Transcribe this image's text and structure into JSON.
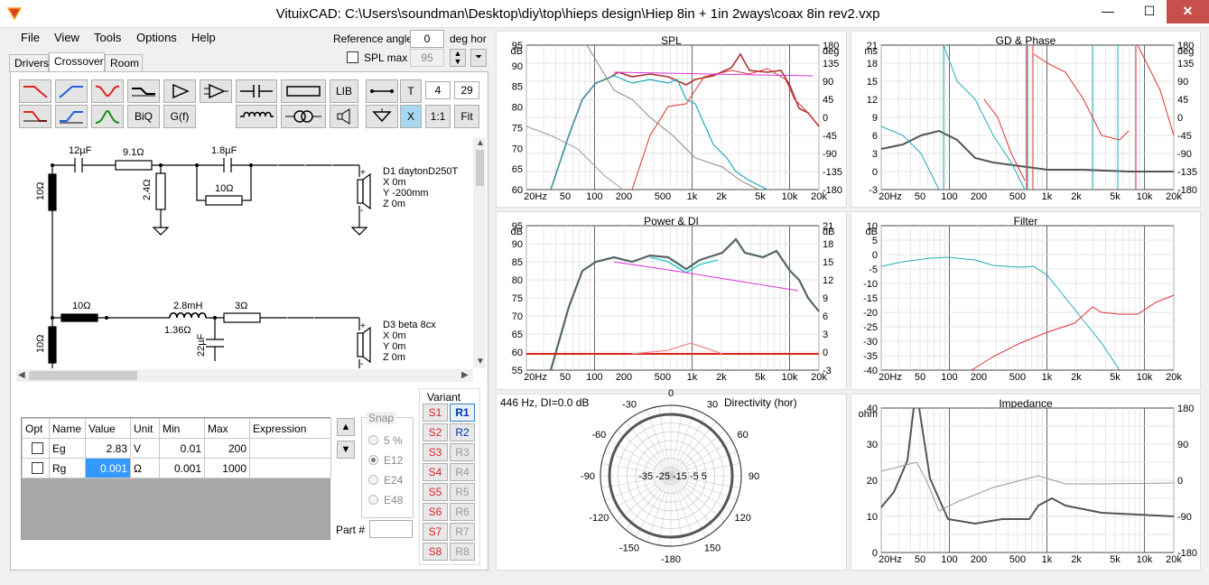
{
  "window": {
    "title": "VituixCAD: C:\\Users\\soundman\\Desktop\\diy\\top\\hieps design\\Hiep 8in + 1in 2ways\\coax 8in rev2.vxp",
    "minimize": "—",
    "maximize": "☐",
    "close": "✕"
  },
  "menu": [
    "File",
    "View",
    "Tools",
    "Options",
    "Help"
  ],
  "ref_angle": {
    "label": "Reference angle",
    "value": "0",
    "unit": "deg hor"
  },
  "spl_max": {
    "label": "SPL max",
    "value": "95"
  },
  "tabs": [
    "Drivers",
    "Crossover",
    "Room"
  ],
  "toolbar": {
    "biq": "BiQ",
    "gf": "G(f)",
    "lib": "LIB",
    "t": "T",
    "x": "X",
    "ratio": "1:1",
    "fit": "Fit",
    "val1": "4",
    "val2": "29"
  },
  "schematic": {
    "labels": [
      "12µF",
      "9.1Ω",
      "1.8µF",
      "2.4Ω",
      "10Ω",
      "10Ω",
      "10Ω",
      "2.8mH",
      "1.36Ω",
      "3Ω",
      "22µF",
      "10Ω"
    ],
    "driver1": [
      "D1 daytonD250T",
      "X 0m",
      "Y -200mm",
      "Z 0m"
    ],
    "driver2": [
      "D3 beta 8cx",
      "X 0m",
      "Y 0m",
      "Z 0m"
    ]
  },
  "params": {
    "headers": [
      "Opt",
      "Name",
      "Value",
      "Unit",
      "Min",
      "Max",
      "Expression"
    ],
    "rows": [
      {
        "name": "Eg",
        "value": "2.83",
        "unit": "V",
        "min": "0.01",
        "max": "200"
      },
      {
        "name": "Rg",
        "value": "0.001",
        "unit": "Ω",
        "min": "0.001",
        "max": "1000"
      }
    ]
  },
  "snap": {
    "label": "Snap",
    "options": [
      "5 %",
      "E12",
      "E24",
      "E48"
    ],
    "selected": "E12"
  },
  "variant": {
    "label": "Variant",
    "s": [
      "S1",
      "S2",
      "S3",
      "S4",
      "S5",
      "S6",
      "S7",
      "S8"
    ],
    "r": [
      "R1",
      "R2",
      "R3",
      "R4",
      "R5",
      "R6",
      "R7",
      "R8"
    ],
    "active": "R1"
  },
  "part": {
    "label": "Part #"
  },
  "freq_ticks": [
    "20Hz",
    "50",
    "100",
    "200",
    "500",
    "1k",
    "2k",
    "5k",
    "10k",
    "20k"
  ],
  "graphs": {
    "spl": {
      "title": "SPL",
      "ylabel": "dB",
      "y2label": "deg",
      "y": [
        "95",
        "90",
        "85",
        "80",
        "75",
        "70",
        "65",
        "60"
      ],
      "y2": [
        "180",
        "135",
        "90",
        "45",
        "0",
        "-45",
        "-90",
        "-135",
        "-180"
      ]
    },
    "gd": {
      "title": "GD & Phase",
      "ylabel": "ms",
      "y2label": "deg",
      "y": [
        "21",
        "18",
        "15",
        "12",
        "9",
        "6",
        "3",
        "0",
        "-3"
      ],
      "y2": [
        "180",
        "135",
        "90",
        "45",
        "0",
        "-45",
        "-90",
        "-135",
        "-180"
      ]
    },
    "power": {
      "title": "Power & DI",
      "ylabel": "dB",
      "y2label": "dB",
      "y": [
        "95",
        "90",
        "85",
        "80",
        "75",
        "70",
        "65",
        "60",
        "55"
      ],
      "y2": [
        "21",
        "18",
        "15",
        "12",
        "9",
        "6",
        "3",
        "0",
        "-3"
      ]
    },
    "filter": {
      "title": "Filter",
      "ylabel": "dB",
      "y": [
        "10",
        "5",
        "0",
        "-5",
        "-10",
        "-15",
        "-20",
        "-25",
        "-30",
        "-35",
        "-40"
      ]
    },
    "directivity": {
      "title": "Directivity (hor)",
      "info": "446 Hz, DI=0.0 dB",
      "angles": [
        "0",
        "30",
        "-30",
        "60",
        "-60",
        "90",
        "-90",
        "120",
        "-120",
        "150",
        "-150",
        "-180"
      ],
      "rings": "-35 -25 -15  -5  5"
    },
    "impedance": {
      "title": "Impedance",
      "ylabel": "ohm",
      "y": [
        "40",
        "30",
        "20",
        "10",
        "0"
      ],
      "y2": [
        "180",
        "90",
        "0",
        "-90",
        "-180"
      ]
    }
  }
}
